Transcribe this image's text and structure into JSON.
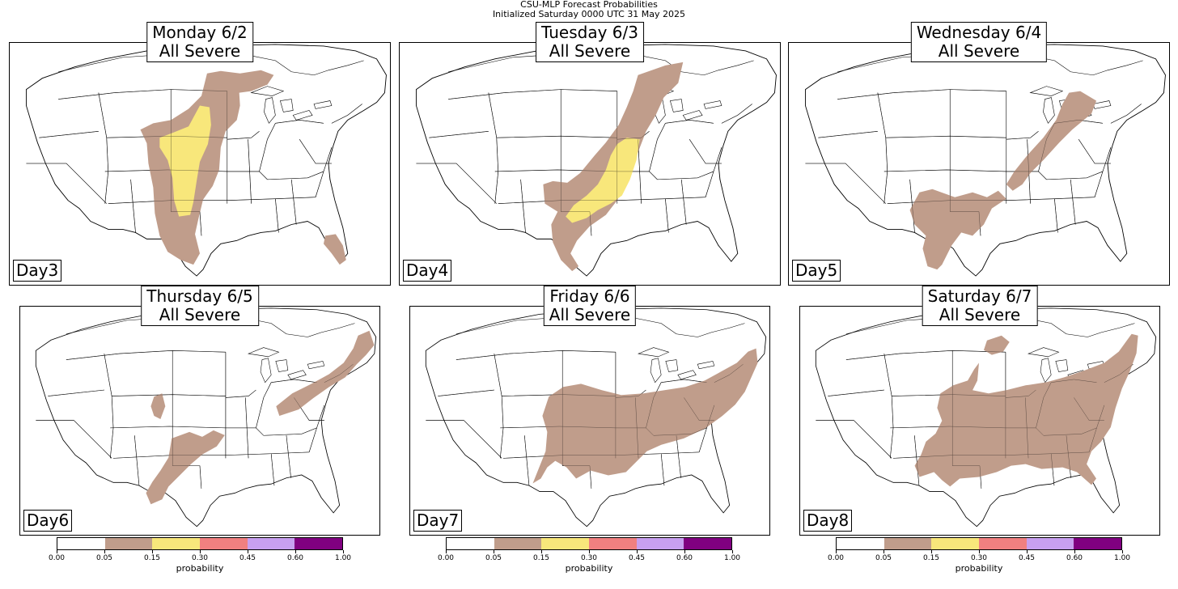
{
  "figure": {
    "title_line1": "CSU-MLP Forecast Probabilities",
    "title_line2": "Initialized Saturday 0000 UTC 31 May 2025"
  },
  "colors": {
    "p05": "#c09d8b",
    "p15": "#f8e77b",
    "p30": "#f08080",
    "p45": "#c8a0f0",
    "p60": "#800080"
  },
  "panels": [
    {
      "title_line1": "Monday 6/2",
      "title_line2": "All Severe",
      "day_label": "Day3"
    },
    {
      "title_line1": "Tuesday 6/3",
      "title_line2": "All Severe",
      "day_label": "Day4"
    },
    {
      "title_line1": "Wednesday 6/4",
      "title_line2": "All Severe",
      "day_label": "Day5"
    },
    {
      "title_line1": "Thursday 6/5",
      "title_line2": "All Severe",
      "day_label": "Day6"
    },
    {
      "title_line1": "Friday 6/6",
      "title_line2": "All Severe",
      "day_label": "Day7"
    },
    {
      "title_line1": "Saturday 6/7",
      "title_line2": "All Severe",
      "day_label": "Day8"
    }
  ],
  "colorbar": {
    "label": "probability",
    "ticks": [
      "0.00",
      "0.05",
      "0.15",
      "0.30",
      "0.45",
      "0.60",
      "1.00"
    ]
  }
}
